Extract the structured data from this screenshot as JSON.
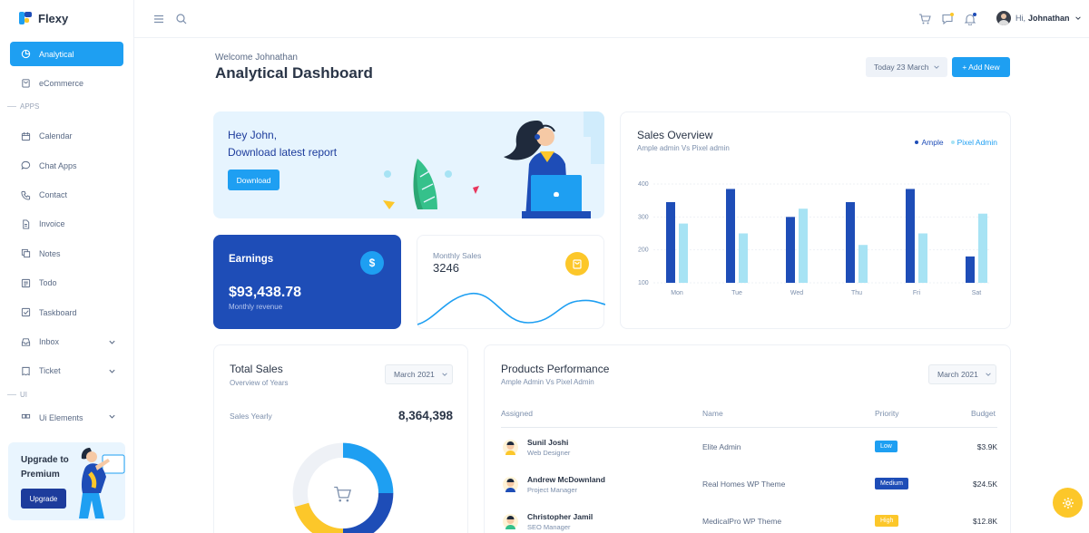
{
  "brand": {
    "name": "Flexy"
  },
  "sidebar": {
    "items": [
      {
        "label": "Analytical",
        "icon": "chart-pie-icon",
        "active": true
      },
      {
        "label": "eCommerce",
        "icon": "shopping-bag-icon"
      }
    ],
    "apps_section": "APPS",
    "apps": [
      {
        "label": "Calendar",
        "icon": "calendar-icon"
      },
      {
        "label": "Chat Apps",
        "icon": "chat-icon"
      },
      {
        "label": "Contact",
        "icon": "phone-icon"
      },
      {
        "label": "Invoice",
        "icon": "file-icon"
      },
      {
        "label": "Notes",
        "icon": "notes-icon"
      },
      {
        "label": "Todo",
        "icon": "list-icon"
      },
      {
        "label": "Taskboard",
        "icon": "checkbox-icon"
      },
      {
        "label": "Inbox",
        "icon": "inbox-icon",
        "has_children": true
      },
      {
        "label": "Ticket",
        "icon": "ticket-icon",
        "has_children": true
      }
    ],
    "ui_section": "UI",
    "ui_items": [
      {
        "label": "Ui Elements",
        "icon": "grid-icon",
        "has_children": true
      }
    ],
    "upgrade": {
      "title": "Upgrade to Premium",
      "button": "Upgrade"
    }
  },
  "topbar": {
    "user_greeting": "Hi,",
    "user_name": "Johnathan"
  },
  "header": {
    "welcome": "Welcome Johnathan",
    "title": "Analytical Dashboard",
    "date_select": "Today 23 March",
    "add_button": "+ Add New"
  },
  "hero": {
    "line1": "Hey John,",
    "line2": "Download latest report",
    "button": "Download"
  },
  "earnings": {
    "label": "Earnings",
    "value": "$93,438.78",
    "sub": "Monthly revenue",
    "icon_char": "$"
  },
  "monthly_sales": {
    "label": "Monthly Sales",
    "value": "3246"
  },
  "sales_overview": {
    "title": "Sales Overview",
    "subtitle": "Ample admin Vs Pixel admin"
  },
  "chart_data": {
    "type": "bar",
    "categories": [
      "Mon",
      "Tue",
      "Wed",
      "Thu",
      "Fri",
      "Sat"
    ],
    "series": [
      {
        "name": "Ample",
        "color": "#1e4db7",
        "values": [
          345,
          385,
          300,
          345,
          385,
          180
        ]
      },
      {
        "name": "Pixel Admin",
        "color": "#a7e3f4",
        "values": [
          280,
          250,
          325,
          215,
          250,
          310
        ]
      }
    ],
    "yticks": [
      "400",
      "300",
      "200",
      "100"
    ],
    "ylim": [
      100,
      400
    ]
  },
  "total_sales": {
    "title": "Total Sales",
    "subtitle": "Overview of Years",
    "select": "March 2021",
    "yearly_label": "Sales Yearly",
    "yearly_value": "8,364,398"
  },
  "products": {
    "title": "Products Performance",
    "subtitle": "Ample Admin Vs Pixel Admin",
    "select": "March 2021",
    "headers": {
      "assigned": "Assigned",
      "name": "Name",
      "priority": "Priority",
      "budget": "Budget"
    },
    "rows": [
      {
        "person": "Sunil Joshi",
        "role": "Web Designer",
        "project": "Elite Admin",
        "priority": "Low",
        "priority_color": "#1e9ff2",
        "budget": "$3.9K"
      },
      {
        "person": "Andrew McDownland",
        "role": "Project Manager",
        "project": "Real Homes WP Theme",
        "priority": "Medium",
        "priority_color": "#1e4db7",
        "budget": "$24.5K"
      },
      {
        "person": "Christopher Jamil",
        "role": "SEO Manager",
        "project": "MedicalPro WP Theme",
        "priority": "High",
        "priority_color": "#fcc72a",
        "budget": "$12.8K"
      }
    ]
  }
}
